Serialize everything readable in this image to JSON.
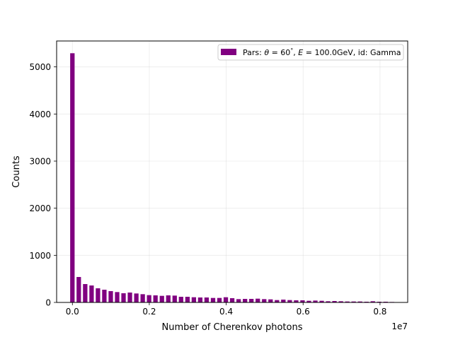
{
  "chart_data": {
    "type": "bar",
    "title": "",
    "xlabel": "Number of Cherenkov photons",
    "ylabel": "Counts",
    "x_offset_label": "1e7",
    "x_scale": 10000000,
    "xlim": [
      -0.041,
      0.872
    ],
    "ylim": [
      0,
      5550
    ],
    "grid": true,
    "legend_position": "top-right",
    "x_ticks": [
      0.0,
      0.2,
      0.4,
      0.6,
      0.8
    ],
    "x_tick_labels": [
      "0.0",
      "0.2",
      "0.4",
      "0.6",
      "0.8"
    ],
    "y_ticks": [
      0,
      1000,
      2000,
      3000,
      4000,
      5000
    ],
    "y_tick_labels": [
      "0",
      "1000",
      "2000",
      "3000",
      "4000",
      "5000"
    ],
    "bar_width": 0.0115,
    "series": [
      {
        "name": "Pars: θ = 60°, E = 100.0GeV, id: Gamma",
        "legend_parts": {
          "prefix": "Pars: ",
          "theta_sym": "θ",
          "theta_eq": " = 60",
          "degree": "°",
          "e_sym": "E",
          "e_eq": " = 100.0GeV, id: Gamma"
        },
        "color": "#800080",
        "x": [
          0.0,
          0.0166,
          0.0333,
          0.0499,
          0.0665,
          0.0831,
          0.0998,
          0.1164,
          0.133,
          0.1496,
          0.1663,
          0.1829,
          0.1995,
          0.2161,
          0.2328,
          0.2494,
          0.266,
          0.2826,
          0.2993,
          0.3159,
          0.3325,
          0.3491,
          0.3658,
          0.3824,
          0.399,
          0.4156,
          0.4323,
          0.4489,
          0.4655,
          0.4821,
          0.4988,
          0.5154,
          0.532,
          0.5486,
          0.5653,
          0.5819,
          0.5985,
          0.6151,
          0.6318,
          0.6484,
          0.665,
          0.6816,
          0.6983,
          0.7149,
          0.7315,
          0.7481,
          0.7648,
          0.7814,
          0.798,
          0.8146,
          0.8313
        ],
        "values": [
          5290,
          540,
          390,
          360,
          300,
          270,
          240,
          220,
          195,
          210,
          190,
          175,
          155,
          150,
          140,
          150,
          145,
          120,
          120,
          110,
          105,
          105,
          95,
          95,
          110,
          90,
          70,
          75,
          75,
          80,
          70,
          65,
          50,
          60,
          50,
          45,
          45,
          35,
          40,
          35,
          25,
          30,
          25,
          20,
          20,
          20,
          15,
          25,
          15,
          15,
          10
        ]
      }
    ]
  }
}
